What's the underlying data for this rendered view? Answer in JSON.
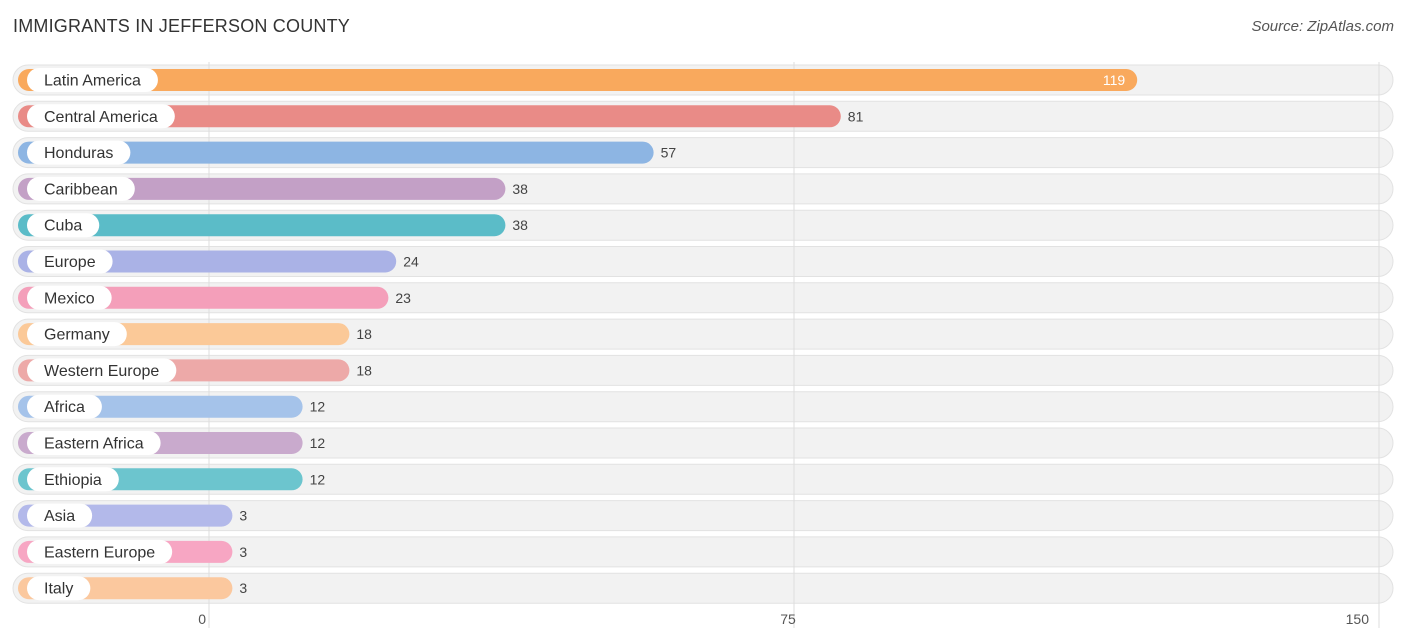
{
  "title": "IMMIGRANTS IN JEFFERSON COUNTY",
  "source": "Source: ZipAtlas.com",
  "chart_data": {
    "type": "bar",
    "orientation": "horizontal",
    "title": "IMMIGRANTS IN JEFFERSON COUNTY",
    "xlabel": "",
    "ylabel": "",
    "xlim": [
      0,
      150
    ],
    "xticks": [
      0,
      75,
      150
    ],
    "categories": [
      "Latin America",
      "Central America",
      "Honduras",
      "Caribbean",
      "Cuba",
      "Europe",
      "Mexico",
      "Germany",
      "Western Europe",
      "Africa",
      "Eastern Africa",
      "Ethiopia",
      "Asia",
      "Eastern Europe",
      "Italy"
    ],
    "values": [
      119,
      81,
      57,
      38,
      38,
      24,
      23,
      18,
      18,
      12,
      12,
      12,
      3,
      3,
      3
    ],
    "colors": [
      "#f9a95d",
      "#e98b87",
      "#8db5e3",
      "#c3a0c6",
      "#5bbcc8",
      "#aab2e6",
      "#f49fba",
      "#fbc998",
      "#eda9a8",
      "#a5c3ea",
      "#c9aacd",
      "#6cc5ce",
      "#b3b9ea",
      "#f7a6c3",
      "#fbc89e"
    ]
  }
}
